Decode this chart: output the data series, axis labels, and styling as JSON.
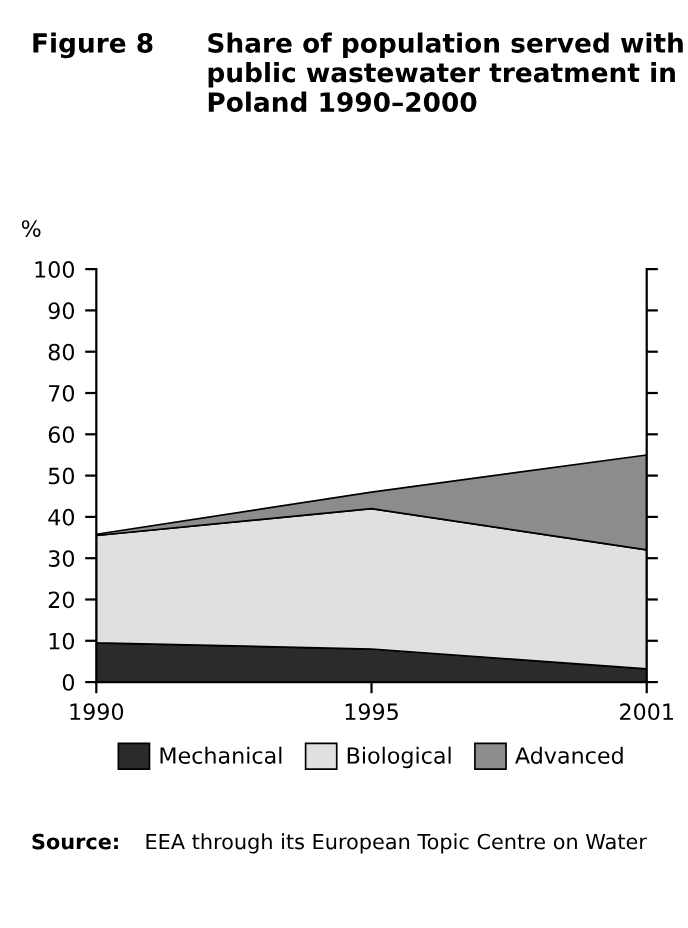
{
  "chart_data": {
    "type": "area",
    "stacked": true,
    "title": "Share of population served with public wastewater treatment in Poland 1990–2000",
    "ylabel": "%",
    "categories": [
      "1990",
      "1995",
      "2001"
    ],
    "series": [
      {
        "name": "Mechanical",
        "color": "#2b2b2b",
        "values": [
          9.5,
          8,
          3.2
        ]
      },
      {
        "name": "Biological",
        "color": "#e0e0e0",
        "values": [
          26,
          34,
          28.8
        ]
      },
      {
        "name": "Advanced",
        "color": "#8c8c8c",
        "values": [
          0.3,
          4,
          23
        ]
      }
    ],
    "ylim": [
      0,
      100
    ],
    "yticks": [
      0,
      10,
      20,
      30,
      40,
      50,
      60,
      70,
      80,
      90,
      100
    ],
    "grid": false,
    "legend": "bottom",
    "annotations": [
      "Figure 8",
      "Source:",
      "EEA through its European Topic Centre on Water"
    ]
  }
}
